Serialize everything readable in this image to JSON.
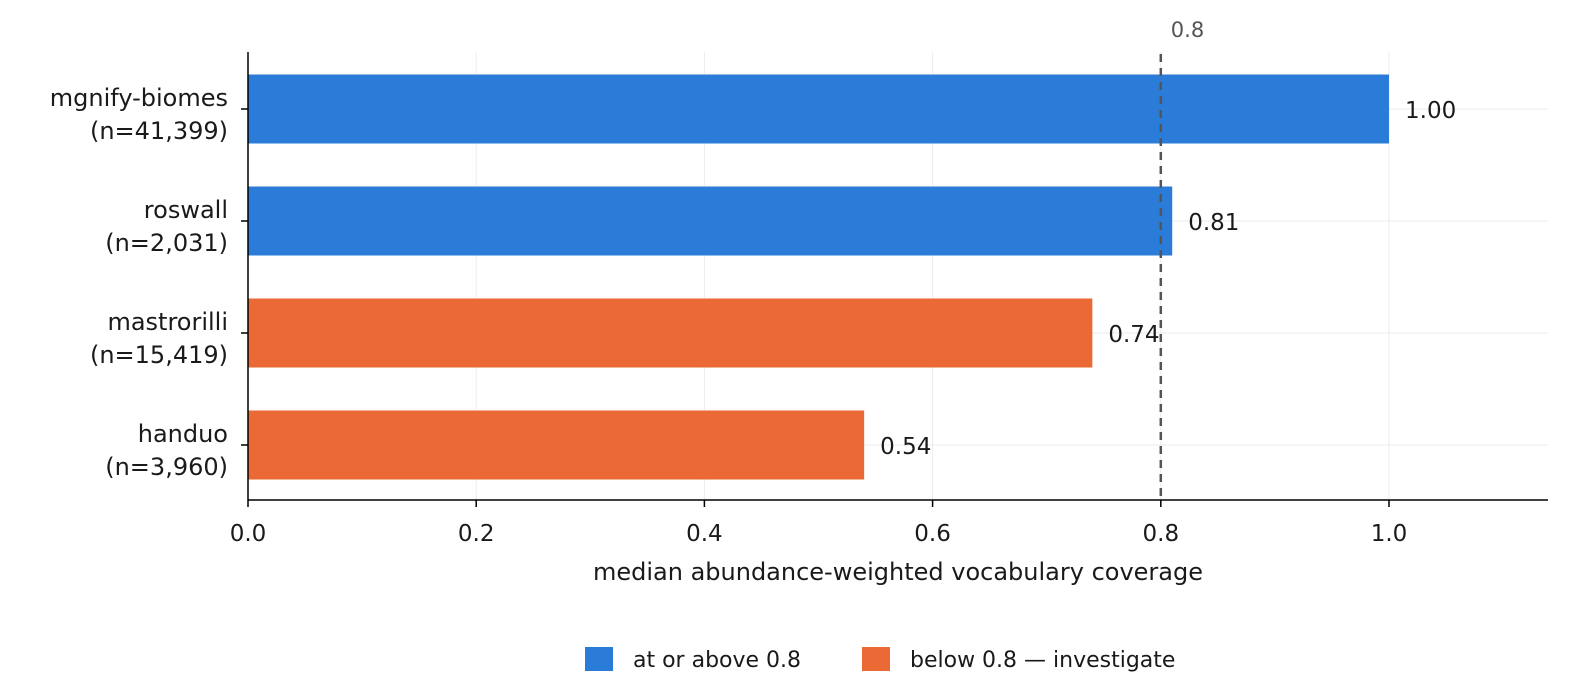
{
  "chart_data": {
    "type": "bar",
    "orientation": "horizontal",
    "categories": [
      [
        "mgnify-biomes",
        "(n=41,399)"
      ],
      [
        "roswall",
        "(n=2,031)"
      ],
      [
        "mastrorilli",
        "(n=15,419)"
      ],
      [
        "handuo",
        "(n=3,960)"
      ]
    ],
    "values": [
      1.0,
      0.81,
      0.74,
      0.54
    ],
    "value_labels": [
      "1.00",
      "0.81",
      "0.74",
      "0.54"
    ],
    "bar_group": [
      "above",
      "above",
      "below",
      "below"
    ],
    "xlabel": "median abundance-weighted vocabulary coverage",
    "ylabel": "",
    "xlim": [
      0,
      1.14
    ],
    "xticks": [
      0.0,
      0.2,
      0.4,
      0.6,
      0.8,
      1.0
    ],
    "xtick_labels": [
      "0.0",
      "0.2",
      "0.4",
      "0.6",
      "0.8",
      "1.0"
    ],
    "grid": true,
    "reference_line": {
      "value": 0.8,
      "label": "0.8",
      "style": "dashed"
    },
    "legend": {
      "placement": "bottom-center",
      "entries": [
        {
          "key": "above",
          "label": "at or above 0.8",
          "color": "#2b7bd8"
        },
        {
          "key": "below",
          "label": "below 0.8 — investigate",
          "color": "#ea6935"
        }
      ]
    },
    "colors": {
      "above": "#2b7bd8",
      "below": "#ea6935"
    }
  }
}
